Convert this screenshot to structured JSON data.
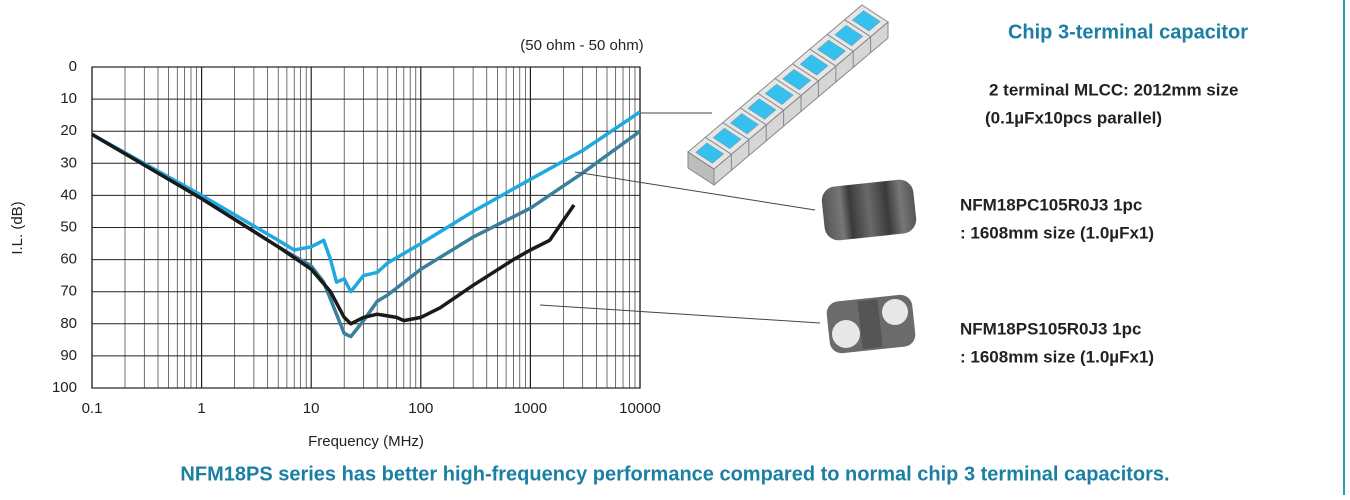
{
  "chart_data": {
    "type": "line",
    "annotation": "(50 ohm - 50 ohm)",
    "ylabel": "I.L. (dB)",
    "xlabel": "Frequency (MHz)",
    "xscale": "log",
    "xlim": [
      0.1,
      10000
    ],
    "xticks": [
      0.1,
      1,
      10,
      100,
      1000,
      10000
    ],
    "ylim": [
      0,
      100
    ],
    "y_inverted": true,
    "yticks": [
      0,
      10,
      20,
      30,
      40,
      50,
      60,
      70,
      80,
      90,
      100
    ],
    "grid": true,
    "minor_grid": true,
    "series": [
      {
        "name": "2 terminal MLCC: 2012mm size",
        "detail": "(0.1µFx10pcs parallel)",
        "color": "#1fa9e1",
        "x": [
          0.1,
          1,
          5,
          7,
          10,
          13,
          15,
          17,
          20,
          23,
          30,
          40,
          50,
          100,
          300,
          1000,
          3000,
          10000
        ],
        "values": [
          21,
          40,
          54,
          57,
          56,
          54,
          60,
          67,
          66,
          70,
          65,
          64,
          61,
          55,
          45,
          35,
          26,
          14
        ]
      },
      {
        "name": "NFM18PC105R0J3  1pc",
        "detail": ": 1608mm size (1.0µFx1)",
        "color": "#3b7f9c",
        "x": [
          0.1,
          1,
          5,
          10,
          13,
          17,
          20,
          23,
          30,
          40,
          50,
          100,
          300,
          1000,
          3000,
          10000
        ],
        "values": [
          21,
          41,
          56,
          62,
          67,
          77,
          83,
          84,
          79,
          73,
          71,
          63,
          53,
          44,
          33,
          20
        ]
      },
      {
        "name": "NFM18PS105R0J3  1pc",
        "detail": ": 1608mm size (1.0µFx1)",
        "color": "#1a1a1a",
        "x": [
          0.1,
          1,
          5,
          10,
          15,
          20,
          23,
          30,
          40,
          60,
          70,
          100,
          150,
          300,
          700,
          1000,
          1500,
          2500
        ],
        "values": [
          21,
          41,
          56,
          63,
          70,
          78,
          80,
          78,
          77,
          78,
          79,
          78,
          75,
          68,
          60,
          57,
          54,
          43
        ]
      }
    ]
  },
  "heading": "Chip 3-terminal capacitor",
  "caption": "NFM18PS series has better high-frequency performance compared to normal chip 3 terminal capacitors."
}
